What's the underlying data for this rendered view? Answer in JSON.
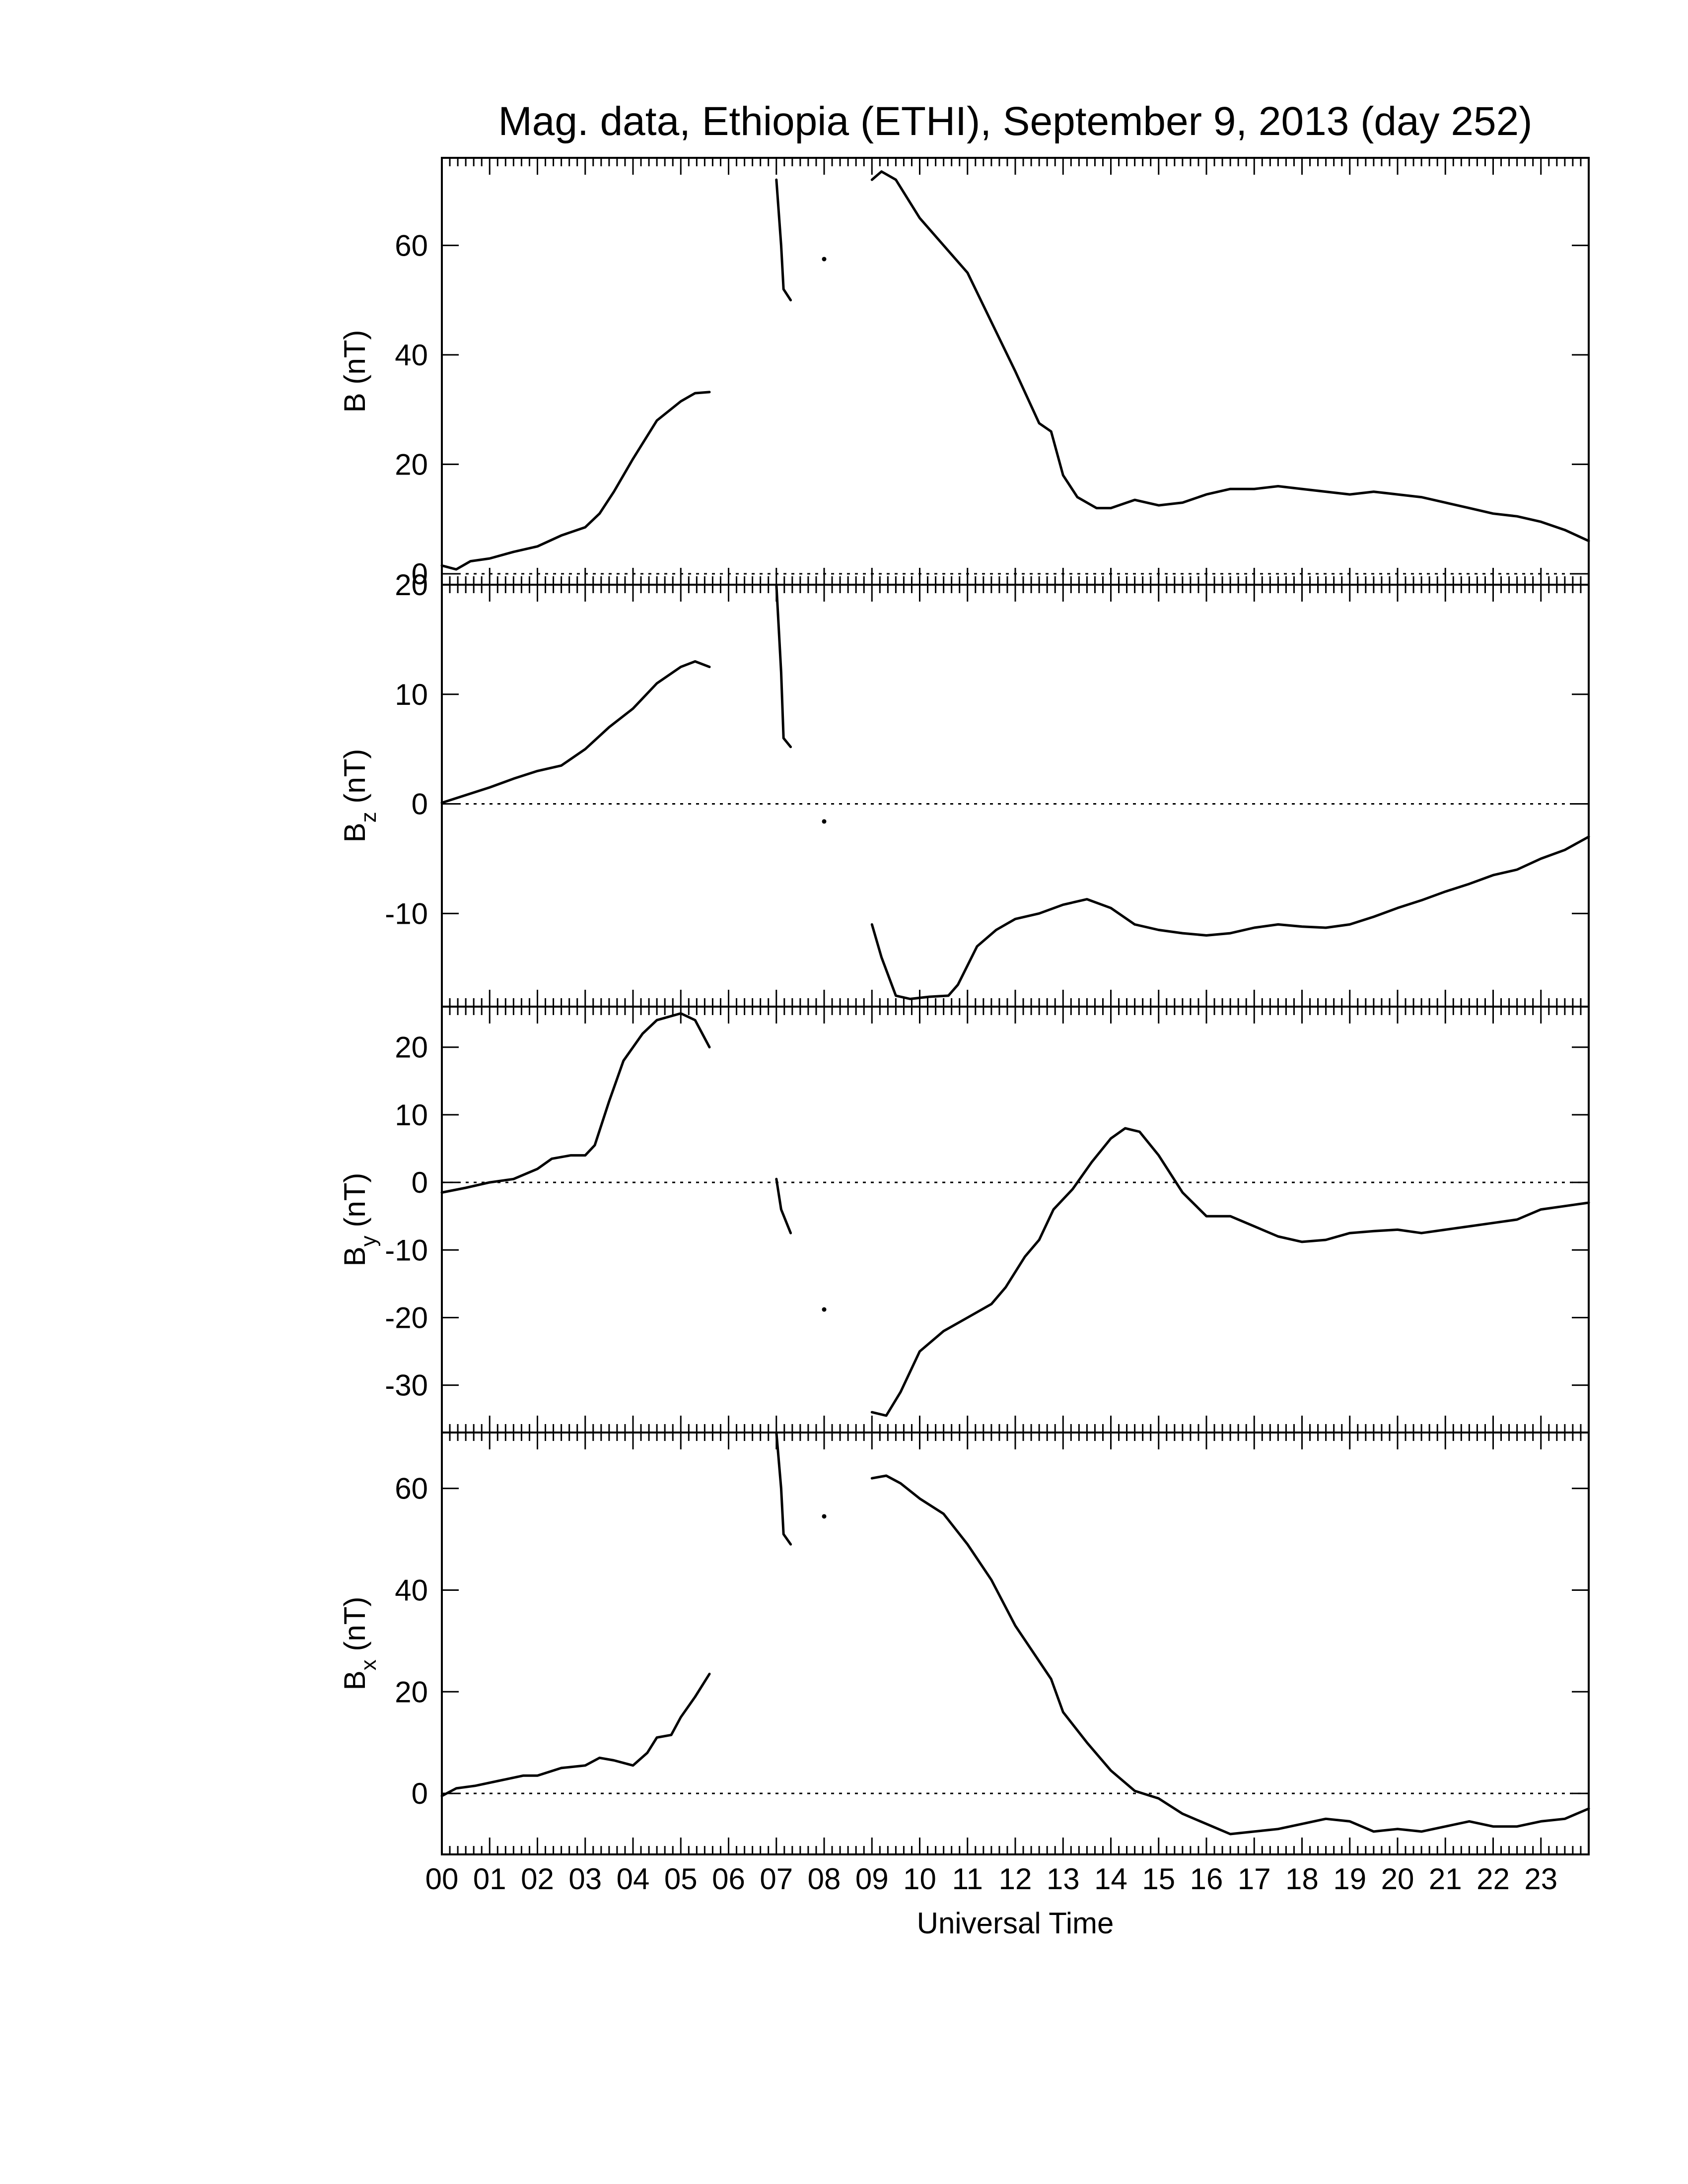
{
  "title": "Mag. data, Ethiopia (ETHI), September 9, 2013 (day 252)",
  "xlabel": "Universal Time",
  "x_tick_labels": [
    "00",
    "01",
    "02",
    "03",
    "04",
    "05",
    "06",
    "07",
    "08",
    "09",
    "10",
    "11",
    "12",
    "13",
    "14",
    "15",
    "16",
    "17",
    "18",
    "19",
    "20",
    "21",
    "22",
    "23"
  ],
  "panels": [
    {
      "id": "B",
      "ylabel_main": "B",
      "ylabel_sub": "",
      "ylabel_unit": "(nT)"
    },
    {
      "id": "Bz",
      "ylabel_main": "B",
      "ylabel_sub": "z",
      "ylabel_unit": "(nT)"
    },
    {
      "id": "By",
      "ylabel_main": "B",
      "ylabel_sub": "y",
      "ylabel_unit": "(nT)"
    },
    {
      "id": "Bx",
      "ylabel_main": "B",
      "ylabel_sub": "x",
      "ylabel_unit": "(nT)"
    }
  ],
  "chart_data": [
    {
      "type": "line",
      "id": "B",
      "xlabel": "Universal Time",
      "ylabel": "B (nT)",
      "xlim": [
        0,
        24
      ],
      "ylim": [
        -2,
        76
      ],
      "yticks": [
        0,
        20,
        40,
        60
      ],
      "zero_line": "dotted",
      "segments": [
        [
          [
            0,
            1.5
          ],
          [
            0.3,
            0.8
          ],
          [
            0.6,
            2.3
          ],
          [
            1.0,
            2.8
          ],
          [
            1.5,
            4.0
          ],
          [
            2.0,
            5.0
          ],
          [
            2.5,
            7.0
          ],
          [
            3.0,
            8.5
          ],
          [
            3.3,
            11
          ],
          [
            3.6,
            15
          ],
          [
            4.0,
            21
          ],
          [
            4.5,
            28
          ],
          [
            5.0,
            31.5
          ],
          [
            5.3,
            33
          ],
          [
            5.6,
            33.2
          ]
        ],
        [
          [
            7.0,
            72
          ],
          [
            7.1,
            60
          ],
          [
            7.15,
            52
          ],
          [
            7.3,
            50
          ]
        ],
        [
          [
            9.0,
            72
          ],
          [
            9.2,
            73.5
          ],
          [
            9.5,
            72
          ],
          [
            10.0,
            65
          ],
          [
            10.5,
            60
          ],
          [
            11.0,
            55
          ],
          [
            11.5,
            46
          ],
          [
            12.0,
            37
          ],
          [
            12.5,
            27.5
          ],
          [
            12.75,
            26
          ],
          [
            13.0,
            18
          ],
          [
            13.3,
            14
          ],
          [
            13.7,
            12
          ],
          [
            14.0,
            12
          ],
          [
            14.5,
            13.5
          ],
          [
            15.0,
            12.5
          ],
          [
            15.5,
            13
          ],
          [
            16.0,
            14.5
          ],
          [
            16.5,
            15.5
          ],
          [
            17.0,
            15.5
          ],
          [
            17.5,
            16
          ],
          [
            18.0,
            15.5
          ],
          [
            18.5,
            15
          ],
          [
            19.0,
            14.5
          ],
          [
            19.5,
            15
          ],
          [
            20.0,
            14.5
          ],
          [
            20.5,
            14
          ],
          [
            21.0,
            13
          ],
          [
            21.5,
            12
          ],
          [
            22.0,
            11
          ],
          [
            22.5,
            10.5
          ],
          [
            23.0,
            9.5
          ],
          [
            23.5,
            8
          ],
          [
            24.0,
            6
          ]
        ]
      ],
      "points": [
        [
          8.0,
          57.5
        ]
      ]
    },
    {
      "type": "line",
      "id": "Bz",
      "xlabel": "Universal Time",
      "ylabel": "Bz (nT)",
      "xlim": [
        0,
        24
      ],
      "ylim": [
        -18.5,
        20
      ],
      "yticks": [
        -10,
        0,
        10,
        20
      ],
      "zero_line": "dotted",
      "segments": [
        [
          [
            0,
            0.1
          ],
          [
            0.5,
            0.8
          ],
          [
            1.0,
            1.5
          ],
          [
            1.5,
            2.3
          ],
          [
            2.0,
            3.0
          ],
          [
            2.5,
            3.5
          ],
          [
            3.0,
            5.0
          ],
          [
            3.5,
            7.0
          ],
          [
            4.0,
            8.7
          ],
          [
            4.5,
            11
          ],
          [
            5.0,
            12.5
          ],
          [
            5.3,
            13
          ],
          [
            5.6,
            12.5
          ]
        ],
        [
          [
            7.0,
            20
          ],
          [
            7.1,
            12
          ],
          [
            7.15,
            6
          ],
          [
            7.3,
            5.2
          ]
        ],
        [
          [
            9.0,
            -11
          ],
          [
            9.2,
            -14
          ],
          [
            9.5,
            -17.5
          ],
          [
            9.8,
            -17.8
          ],
          [
            10.2,
            -17.6
          ],
          [
            10.6,
            -17.5
          ],
          [
            10.8,
            -16.5
          ],
          [
            11.2,
            -13
          ],
          [
            11.6,
            -11.5
          ],
          [
            12.0,
            -10.5
          ],
          [
            12.5,
            -10
          ],
          [
            13.0,
            -9.2
          ],
          [
            13.5,
            -8.7
          ],
          [
            14.0,
            -9.5
          ],
          [
            14.5,
            -11
          ],
          [
            15.0,
            -11.5
          ],
          [
            15.5,
            -11.8
          ],
          [
            16.0,
            -12
          ],
          [
            16.5,
            -11.8
          ],
          [
            17.0,
            -11.3
          ],
          [
            17.5,
            -11
          ],
          [
            18.0,
            -11.2
          ],
          [
            18.5,
            -11.3
          ],
          [
            19.0,
            -11
          ],
          [
            19.5,
            -10.3
          ],
          [
            20.0,
            -9.5
          ],
          [
            20.5,
            -8.8
          ],
          [
            21.0,
            -8
          ],
          [
            21.5,
            -7.3
          ],
          [
            22.0,
            -6.5
          ],
          [
            22.5,
            -6
          ],
          [
            23.0,
            -5
          ],
          [
            23.5,
            -4.2
          ],
          [
            24.0,
            -3
          ]
        ]
      ],
      "points": [
        [
          8.0,
          -1.6
        ]
      ]
    },
    {
      "type": "line",
      "id": "By",
      "xlabel": "Universal Time",
      "ylabel": "By (nT)",
      "xlim": [
        0,
        24
      ],
      "ylim": [
        -37,
        26
      ],
      "yticks": [
        -30,
        -20,
        -10,
        0,
        10,
        20
      ],
      "zero_line": "dotted",
      "segments": [
        [
          [
            0,
            -1.5
          ],
          [
            0.5,
            -0.8
          ],
          [
            1.0,
            0
          ],
          [
            1.5,
            0.5
          ],
          [
            2.0,
            2.0
          ],
          [
            2.3,
            3.5
          ],
          [
            2.7,
            4.0
          ],
          [
            3.0,
            4.0
          ],
          [
            3.2,
            5.5
          ],
          [
            3.5,
            12
          ],
          [
            3.8,
            18
          ],
          [
            4.2,
            22
          ],
          [
            4.5,
            24
          ],
          [
            5.0,
            25
          ],
          [
            5.3,
            24
          ],
          [
            5.6,
            20
          ]
        ],
        [
          [
            7.0,
            0.5
          ],
          [
            7.1,
            -4
          ],
          [
            7.3,
            -7.5
          ]
        ],
        [
          [
            9.0,
            -34
          ],
          [
            9.3,
            -34.5
          ],
          [
            9.6,
            -31
          ],
          [
            10.0,
            -25
          ],
          [
            10.5,
            -22
          ],
          [
            11.0,
            -20
          ],
          [
            11.5,
            -18
          ],
          [
            11.8,
            -15.5
          ],
          [
            12.2,
            -11
          ],
          [
            12.5,
            -8.5
          ],
          [
            12.8,
            -4
          ],
          [
            13.2,
            -1
          ],
          [
            13.6,
            3
          ],
          [
            14.0,
            6.5
          ],
          [
            14.3,
            8
          ],
          [
            14.6,
            7.5
          ],
          [
            15.0,
            4
          ],
          [
            15.5,
            -1.5
          ],
          [
            16.0,
            -5
          ],
          [
            16.5,
            -5
          ],
          [
            17.0,
            -6.5
          ],
          [
            17.5,
            -8
          ],
          [
            18.0,
            -8.8
          ],
          [
            18.5,
            -8.5
          ],
          [
            19.0,
            -7.5
          ],
          [
            19.5,
            -7.2
          ],
          [
            20.0,
            -7
          ],
          [
            20.5,
            -7.5
          ],
          [
            21.0,
            -7
          ],
          [
            21.5,
            -6.5
          ],
          [
            22.0,
            -6
          ],
          [
            22.5,
            -5.5
          ],
          [
            23.0,
            -4
          ],
          [
            23.5,
            -3.5
          ],
          [
            24.0,
            -3
          ]
        ]
      ],
      "points": [
        [
          8.0,
          -18.8
        ]
      ]
    },
    {
      "type": "line",
      "id": "Bx",
      "xlabel": "Universal Time",
      "ylabel": "Bx (nT)",
      "xlim": [
        0,
        24
      ],
      "ylim": [
        -12,
        71
      ],
      "yticks": [
        0,
        20,
        40,
        60
      ],
      "zero_line": "dotted",
      "segments": [
        [
          [
            0,
            -0.5
          ],
          [
            0.3,
            1.0
          ],
          [
            0.7,
            1.5
          ],
          [
            1.2,
            2.5
          ],
          [
            1.7,
            3.5
          ],
          [
            2.0,
            3.5
          ],
          [
            2.5,
            5.0
          ],
          [
            3.0,
            5.5
          ],
          [
            3.3,
            7.0
          ],
          [
            3.6,
            6.5
          ],
          [
            4.0,
            5.5
          ],
          [
            4.3,
            8
          ],
          [
            4.5,
            11
          ],
          [
            4.8,
            11.5
          ],
          [
            5.0,
            15
          ],
          [
            5.3,
            19
          ],
          [
            5.6,
            23.5
          ]
        ],
        [
          [
            7.0,
            71
          ],
          [
            7.1,
            60
          ],
          [
            7.15,
            51
          ],
          [
            7.3,
            49
          ]
        ],
        [
          [
            9.0,
            62
          ],
          [
            9.3,
            62.5
          ],
          [
            9.6,
            61
          ],
          [
            10.0,
            58
          ],
          [
            10.5,
            55
          ],
          [
            11.0,
            49
          ],
          [
            11.5,
            42
          ],
          [
            12.0,
            33
          ],
          [
            12.5,
            26
          ],
          [
            12.75,
            22.5
          ],
          [
            13.0,
            16
          ],
          [
            13.5,
            10
          ],
          [
            14.0,
            4.5
          ],
          [
            14.5,
            0.5
          ],
          [
            15.0,
            -1
          ],
          [
            15.5,
            -4
          ],
          [
            16.0,
            -6
          ],
          [
            16.5,
            -8
          ],
          [
            17.0,
            -7.5
          ],
          [
            17.5,
            -7
          ],
          [
            18.0,
            -6
          ],
          [
            18.5,
            -5
          ],
          [
            19.0,
            -5.5
          ],
          [
            19.5,
            -7.5
          ],
          [
            20.0,
            -7
          ],
          [
            20.5,
            -7.5
          ],
          [
            21.0,
            -6.5
          ],
          [
            21.5,
            -5.5
          ],
          [
            22.0,
            -6.5
          ],
          [
            22.5,
            -6.5
          ],
          [
            23.0,
            -5.5
          ],
          [
            23.5,
            -5
          ],
          [
            24.0,
            -3
          ]
        ]
      ],
      "points": [
        [
          8.0,
          54.5
        ]
      ]
    }
  ]
}
